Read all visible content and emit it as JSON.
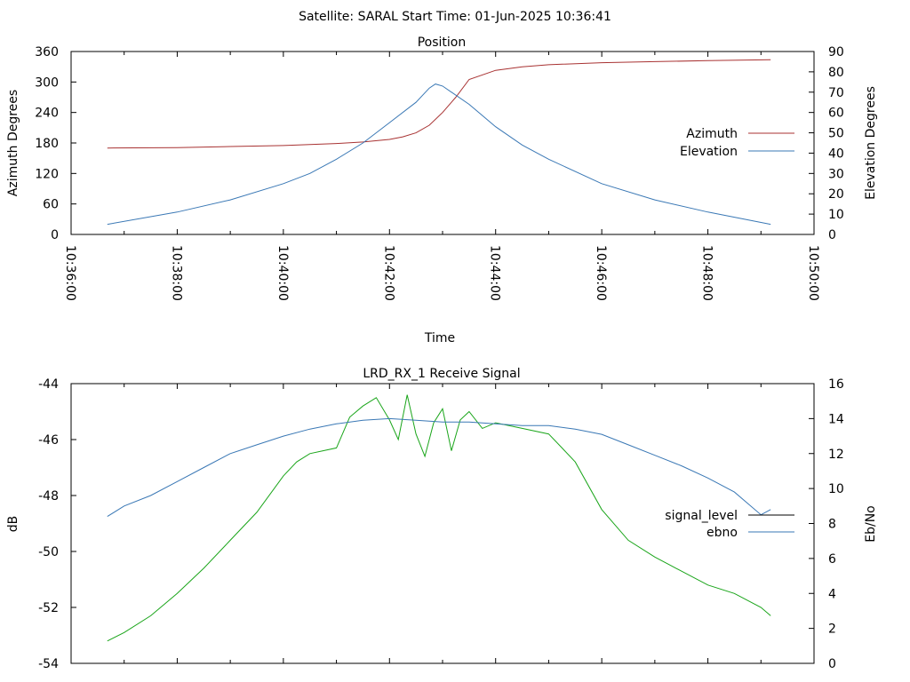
{
  "header": {
    "title": "Satellite: SARAL    Start Time: 01-Jun-2025 10:36:41"
  },
  "chart_data": [
    {
      "type": "line",
      "title": "Position",
      "xlabel": "Time",
      "ylabel": "Azimuth Degrees",
      "y2label": "Elevation Degrees",
      "x_ticks": [
        "10:36:00",
        "10:38:00",
        "10:40:00",
        "10:42:00",
        "10:44:00",
        "10:46:00",
        "10:48:00",
        "10:50:00"
      ],
      "xlim": [
        "10:36:00",
        "10:50:00"
      ],
      "ylim": [
        0,
        360
      ],
      "y_ticks": [
        0,
        60,
        120,
        180,
        240,
        300,
        360
      ],
      "y2lim": [
        0,
        90
      ],
      "y2_ticks": [
        0,
        10,
        20,
        30,
        40,
        50,
        60,
        70,
        80,
        90
      ],
      "legend": "right",
      "grid": false,
      "series": [
        {
          "name": "Azimuth",
          "axis": "left",
          "color": "#a83232",
          "x": [
            "10:36:41",
            "10:38:00",
            "10:39:00",
            "10:40:00",
            "10:40:30",
            "10:41:00",
            "10:41:30",
            "10:42:00",
            "10:42:15",
            "10:42:30",
            "10:42:45",
            "10:43:00",
            "10:43:15",
            "10:43:30",
            "10:44:00",
            "10:44:30",
            "10:45:00",
            "10:46:00",
            "10:47:00",
            "10:48:00",
            "10:49:11"
          ],
          "y": [
            170,
            171,
            173,
            175,
            177,
            179,
            182,
            187,
            192,
            200,
            215,
            240,
            270,
            305,
            323,
            330,
            334,
            338,
            340,
            342,
            344
          ]
        },
        {
          "name": "Elevation",
          "axis": "right",
          "color": "#3a78b5",
          "x": [
            "10:36:41",
            "10:38:00",
            "10:39:00",
            "10:40:00",
            "10:40:30",
            "10:41:00",
            "10:41:30",
            "10:42:00",
            "10:42:30",
            "10:42:45",
            "10:42:52",
            "10:43:00",
            "10:43:30",
            "10:44:00",
            "10:44:30",
            "10:45:00",
            "10:46:00",
            "10:47:00",
            "10:48:00",
            "10:49:11"
          ],
          "y": [
            5,
            11,
            17,
            25,
            30,
            37,
            45,
            55,
            65,
            72,
            74,
            73,
            64,
            53,
            44,
            37,
            25,
            17,
            11,
            5
          ]
        }
      ]
    },
    {
      "type": "line",
      "title": "LRD_RX_1 Receive Signal",
      "ylabel": "dB",
      "y2label": "Eb/No",
      "xlim": [
        "10:36:00",
        "10:50:00"
      ],
      "ylim": [
        -54,
        -44
      ],
      "y_ticks": [
        -54,
        -52,
        -50,
        -48,
        -46,
        -44
      ],
      "y2lim": [
        0,
        16
      ],
      "y2_ticks": [
        0,
        2,
        4,
        6,
        8,
        10,
        12,
        14,
        16
      ],
      "legend": "right",
      "grid": false,
      "series": [
        {
          "name": "signal_level",
          "axis": "left",
          "color": "#1aa51a",
          "x": [
            "10:36:41",
            "10:37:00",
            "10:37:30",
            "10:38:00",
            "10:38:30",
            "10:39:00",
            "10:39:30",
            "10:40:00",
            "10:40:15",
            "10:40:30",
            "10:41:00",
            "10:41:15",
            "10:41:30",
            "10:41:45",
            "10:42:00",
            "10:42:10",
            "10:42:20",
            "10:42:30",
            "10:42:40",
            "10:42:50",
            "10:43:00",
            "10:43:10",
            "10:43:20",
            "10:43:30",
            "10:43:45",
            "10:44:00",
            "10:44:30",
            "10:45:00",
            "10:45:15",
            "10:45:30",
            "10:46:00",
            "10:46:30",
            "10:47:00",
            "10:47:30",
            "10:48:00",
            "10:48:30",
            "10:49:00",
            "10:49:11"
          ],
          "y": [
            -53.2,
            -52.9,
            -52.3,
            -51.5,
            -50.6,
            -49.6,
            -48.6,
            -47.3,
            -46.8,
            -46.5,
            -46.3,
            -45.2,
            -44.8,
            -44.5,
            -45.3,
            -46.0,
            -44.4,
            -45.8,
            -46.6,
            -45.4,
            -44.9,
            -46.4,
            -45.3,
            -45.0,
            -45.6,
            -45.4,
            -45.6,
            -45.8,
            -46.3,
            -46.8,
            -48.5,
            -49.6,
            -50.2,
            -50.7,
            -51.2,
            -51.5,
            -52.0,
            -52.3
          ]
        },
        {
          "name": "ebno",
          "axis": "right",
          "color": "#3a78b5",
          "x": [
            "10:36:41",
            "10:37:00",
            "10:37:30",
            "10:38:00",
            "10:38:30",
            "10:39:00",
            "10:39:30",
            "10:40:00",
            "10:40:30",
            "10:41:00",
            "10:41:30",
            "10:42:00",
            "10:42:30",
            "10:43:00",
            "10:43:30",
            "10:44:00",
            "10:44:30",
            "10:45:00",
            "10:45:30",
            "10:46:00",
            "10:46:30",
            "10:47:00",
            "10:47:30",
            "10:48:00",
            "10:48:30",
            "10:49:00",
            "10:49:11"
          ],
          "y": [
            8.4,
            9.0,
            9.6,
            10.4,
            11.2,
            12.0,
            12.5,
            13.0,
            13.4,
            13.7,
            13.9,
            14.0,
            13.9,
            13.8,
            13.8,
            13.7,
            13.6,
            13.6,
            13.4,
            13.1,
            12.5,
            11.9,
            11.3,
            10.6,
            9.8,
            8.5,
            8.8
          ]
        }
      ]
    }
  ]
}
